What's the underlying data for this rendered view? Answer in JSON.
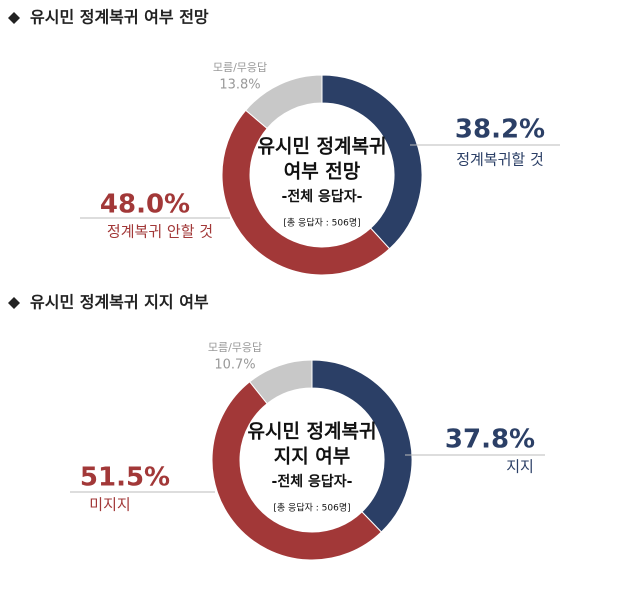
{
  "chart_data": [
    {
      "type": "donut",
      "title": "유시민 정계복귀 여부 전망",
      "center_text": [
        "유시민 정계복귀",
        "여부 전망",
        "-전체 응답자-",
        "[총 응답자 : 506명]"
      ],
      "categories": [
        "정계복귀할 것",
        "정계복귀 안할 것",
        "모름/무응답"
      ],
      "values": [
        38.2,
        48.0,
        13.8
      ],
      "value_labels": [
        "38.2%",
        "48.0%",
        "13.8%"
      ],
      "colors": [
        "#2b3f66",
        "#a23838",
        "#c8c8c8"
      ]
    },
    {
      "type": "donut",
      "title": "유시민 정계복귀 지지 여부",
      "center_text": [
        "유시민 정계복귀",
        "지지 여부",
        "-전체 응답자-",
        "[총 응답자 : 506명]"
      ],
      "categories": [
        "지지",
        "미지지",
        "모름/무응답"
      ],
      "values": [
        37.8,
        51.5,
        10.7
      ],
      "value_labels": [
        "37.8%",
        "51.5%",
        "10.7%"
      ],
      "colors": [
        "#2b3f66",
        "#a23838",
        "#c8c8c8"
      ]
    }
  ]
}
